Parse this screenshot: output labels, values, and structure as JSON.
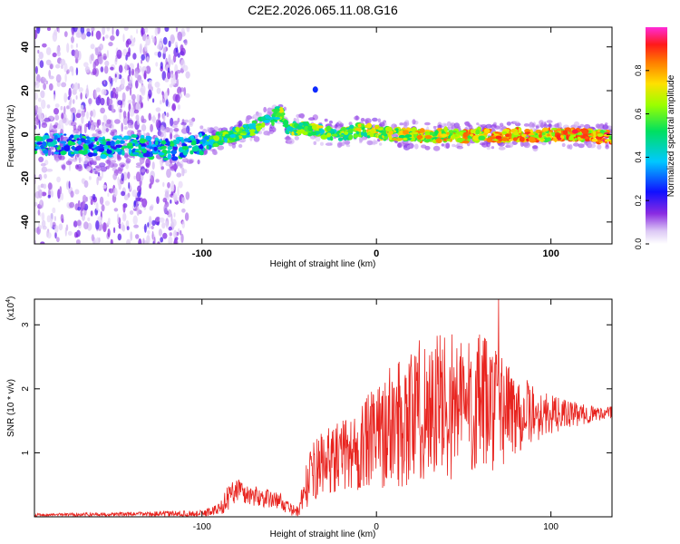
{
  "title": "C2E2.2026.065.11.08.G16",
  "chart_data": [
    {
      "type": "heatmap",
      "title": "C2E2.2026.065.11.08.G16",
      "xlabel": "Height of straight line (km)",
      "ylabel": "Frequency (Hz)",
      "xlim": [
        -196,
        135
      ],
      "ylim": [
        -50,
        49
      ],
      "xticks": [
        -100,
        0,
        100
      ],
      "yticks": [
        -40,
        -20,
        0,
        20,
        40
      ],
      "colorbar": {
        "label": "Normalized spectral amplitude",
        "range": [
          0,
          1
        ],
        "ticks": [
          "0.0",
          "0.2",
          "0.4",
          "0.6",
          "0.8"
        ],
        "tick_values": [
          0.0,
          0.2,
          0.4,
          0.6,
          0.8
        ]
      },
      "ridge": {
        "x": [
          -196,
          -180,
          -160,
          -140,
          -120,
          -110,
          -100,
          -90,
          -80,
          -70,
          -60,
          -55,
          -50,
          -40,
          -30,
          -20,
          -10,
          0,
          10,
          20,
          30,
          40,
          50,
          60,
          70,
          80,
          90,
          100,
          110,
          120,
          125,
          130,
          135
        ],
        "y": [
          -5,
          -4,
          -6,
          -5,
          -7,
          -6,
          -4,
          -2,
          0,
          3,
          7,
          11,
          2,
          3,
          1,
          0,
          2,
          1,
          0,
          0,
          -1,
          0,
          -1,
          0,
          -1,
          0,
          -1,
          0,
          0,
          0,
          -1,
          -1,
          -1
        ]
      }
    },
    {
      "type": "line",
      "xlabel": "Height of straight line (km)",
      "ylabel": "SNR (10 * v/v)",
      "y_multiplier_label": "(x10",
      "y_multiplier_exp": "4",
      "xlim": [
        -196,
        135
      ],
      "ylim": [
        0,
        3.4
      ],
      "xticks": [
        -100,
        0,
        100
      ],
      "yticks": [
        1,
        2,
        3
      ],
      "series": [
        {
          "name": "SNR",
          "color": "#e8231e",
          "envelope_x": [
            -196,
            -150,
            -100,
            -90,
            -85,
            -80,
            -75,
            -65,
            -55,
            -50,
            -45,
            -40,
            -35,
            -30,
            -20,
            -10,
            0,
            10,
            20,
            30,
            40,
            50,
            60,
            70,
            80,
            90,
            100,
            110,
            120,
            130,
            135
          ],
          "envelope_y": [
            0.03,
            0.04,
            0.05,
            0.12,
            0.3,
            0.45,
            0.35,
            0.3,
            0.25,
            0.12,
            0.08,
            0.5,
            0.75,
            0.85,
            0.95,
            1.05,
            1.25,
            1.45,
            1.6,
            1.7,
            1.75,
            1.75,
            1.75,
            1.7,
            1.65,
            1.6,
            1.6,
            1.6,
            1.6,
            1.62,
            1.63
          ],
          "amplitude_y": [
            0.02,
            0.03,
            0.05,
            0.1,
            0.2,
            0.2,
            0.18,
            0.15,
            0.12,
            0.1,
            0.08,
            0.35,
            0.5,
            0.5,
            0.55,
            0.7,
            0.8,
            1.0,
            1.1,
            1.2,
            1.2,
            1.15,
            1.1,
            0.95,
            0.7,
            0.45,
            0.3,
            0.22,
            0.15,
            0.1,
            0.1
          ],
          "peak_x": 70,
          "peak_y": 3.4
        }
      ]
    }
  ]
}
